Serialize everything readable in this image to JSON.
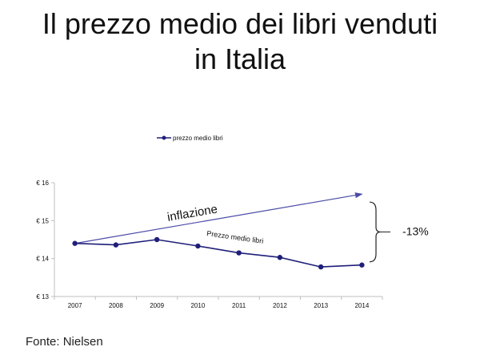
{
  "title_lines": [
    "Il prezzo medio dei libri venduti",
    "in Italia"
  ],
  "source": "Fonte: Nielsen",
  "colors": {
    "series": "#1f1f7a",
    "arrow": "#4a4aa6",
    "axis": "#bfbfbf",
    "text": "#111111"
  },
  "chart_data": {
    "type": "line",
    "title": "",
    "xlabel": "",
    "ylabel": "",
    "x": [
      "2007",
      "2008",
      "2009",
      "2010",
      "2011",
      "2012",
      "2013",
      "2014"
    ],
    "ylim": [
      13,
      16
    ],
    "yticks": [
      "€ 13",
      "€ 14",
      "€ 15",
      "€ 16"
    ],
    "grid": false,
    "legend": "top-center",
    "series": [
      {
        "name": "prezzo medio libri",
        "values": [
          14.4,
          14.36,
          14.5,
          14.33,
          14.15,
          14.03,
          13.78,
          13.83
        ]
      }
    ],
    "annotations": {
      "inflation_label": "inflazione",
      "inflation_line": {
        "x_start": "2007",
        "y_start": 14.4,
        "x_end": "2014",
        "y_end": 15.7
      },
      "series_label": "Prezzo medio libri",
      "gap_label": "-13%"
    }
  }
}
